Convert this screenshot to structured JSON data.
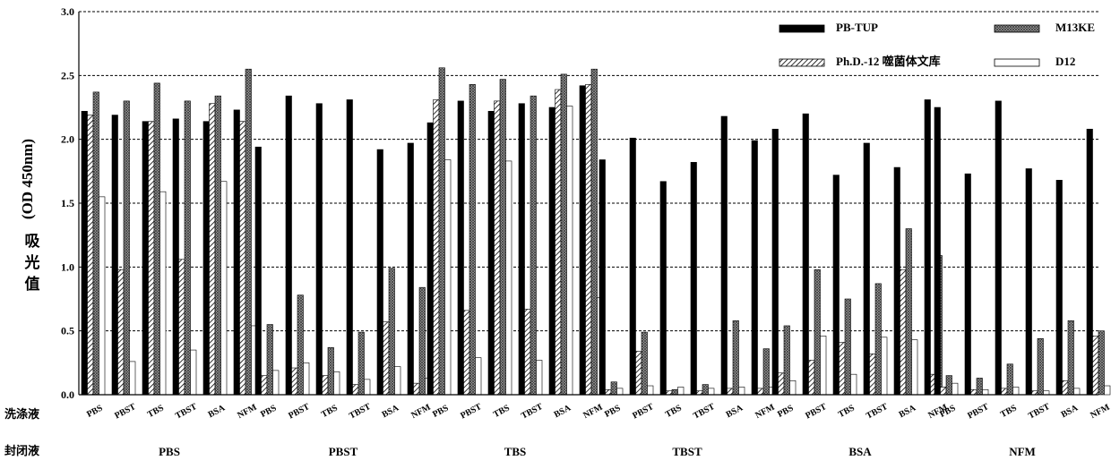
{
  "chart_data": {
    "type": "bar",
    "ylabel_cn": "吸光值",
    "ylabel_unit": "(OD 450nm)",
    "row_label_wash": "洗涤液",
    "row_label_block": "封闭液",
    "ylim": [
      0,
      3.0
    ],
    "yticks": [
      "0.0",
      "0.5",
      "1.0",
      "1.5",
      "2.0",
      "2.5",
      "3.0"
    ],
    "grid": "horizontal-dashed",
    "legend_position": "top-right",
    "series": [
      {
        "name": "PB-TUP",
        "pattern": "solid"
      },
      {
        "name": "M13KE",
        "pattern": "crosshatch"
      },
      {
        "name": "Ph.D.-12 噬菌体文库",
        "pattern": "diagonal"
      },
      {
        "name": "D12",
        "pattern": "white"
      }
    ],
    "groups": [
      {
        "label": "PBS",
        "cats": [
          "PBS",
          "PBST",
          "TBS",
          "TBST",
          "BSA",
          "NFM"
        ],
        "values": [
          [
            2.22,
            2.37,
            2.19,
            1.55
          ],
          [
            2.19,
            2.3,
            0.98,
            0.26
          ],
          [
            2.14,
            2.44,
            2.14,
            1.59
          ],
          [
            2.16,
            2.3,
            1.06,
            0.35
          ],
          [
            2.14,
            2.34,
            2.28,
            1.67
          ],
          [
            2.23,
            2.55,
            2.14,
            0.54
          ]
        ]
      },
      {
        "label": "PBST",
        "cats": [
          "PBS",
          "PBST",
          "TBS",
          "TBST",
          "BSA",
          "NFM"
        ],
        "values": [
          [
            1.94,
            0.55,
            0.15,
            0.19
          ],
          [
            2.34,
            0.78,
            0.21,
            0.25
          ],
          [
            2.28,
            0.37,
            0.15,
            0.18
          ],
          [
            2.31,
            0.49,
            0.08,
            0.12
          ],
          [
            1.92,
            0.99,
            0.57,
            0.22
          ],
          [
            1.97,
            0.84,
            0.09,
            0.13
          ]
        ]
      },
      {
        "label": "TBS",
        "cats": [
          "PBS",
          "PBST",
          "TBS",
          "TBST",
          "BSA",
          "NFM"
        ],
        "values": [
          [
            2.13,
            2.56,
            2.31,
            1.84
          ],
          [
            2.3,
            2.43,
            0.66,
            0.29
          ],
          [
            2.22,
            2.47,
            2.3,
            1.83
          ],
          [
            2.28,
            2.34,
            0.67,
            0.27
          ],
          [
            2.25,
            2.51,
            2.39,
            2.26
          ],
          [
            2.42,
            2.55,
            2.43,
            0.76
          ]
        ]
      },
      {
        "label": "TBST",
        "cats": [
          "PBS",
          "PBST",
          "TBS",
          "TBST",
          "BSA",
          "NFM"
        ],
        "values": [
          [
            1.84,
            0.1,
            0.04,
            0.05
          ],
          [
            2.01,
            0.49,
            0.34,
            0.07
          ],
          [
            1.67,
            0.04,
            0.03,
            0.06
          ],
          [
            1.82,
            0.08,
            0.03,
            0.05
          ],
          [
            2.18,
            0.58,
            0.05,
            0.06
          ],
          [
            1.99,
            0.36,
            0.05,
            0.06
          ]
        ]
      },
      {
        "label": "BSA",
        "cats": [
          "PBS",
          "PBST",
          "TBS",
          "TBST",
          "BSA",
          "NFM"
        ],
        "values": [
          [
            2.08,
            0.54,
            0.17,
            0.11
          ],
          [
            2.2,
            0.98,
            0.27,
            0.46
          ],
          [
            1.72,
            0.75,
            0.41,
            0.16
          ],
          [
            1.97,
            0.87,
            0.32,
            0.45
          ],
          [
            1.78,
            1.3,
            0.98,
            0.43
          ],
          [
            2.31,
            1.09,
            0.16,
            0.06
          ]
        ]
      },
      {
        "label": "NFM",
        "cats": [
          "PBS",
          "PBST",
          "TBS",
          "TBST",
          "BSA",
          "NFM"
        ],
        "values": [
          [
            2.25,
            0.15,
            0.06,
            0.09
          ],
          [
            1.73,
            0.13,
            0.04,
            0.04
          ],
          [
            2.3,
            0.24,
            0.05,
            0.06
          ],
          [
            1.77,
            0.44,
            0.03,
            0.03
          ],
          [
            1.68,
            0.58,
            0.11,
            0.05
          ],
          [
            2.08,
            0.5,
            0.46,
            0.07
          ]
        ]
      }
    ]
  }
}
